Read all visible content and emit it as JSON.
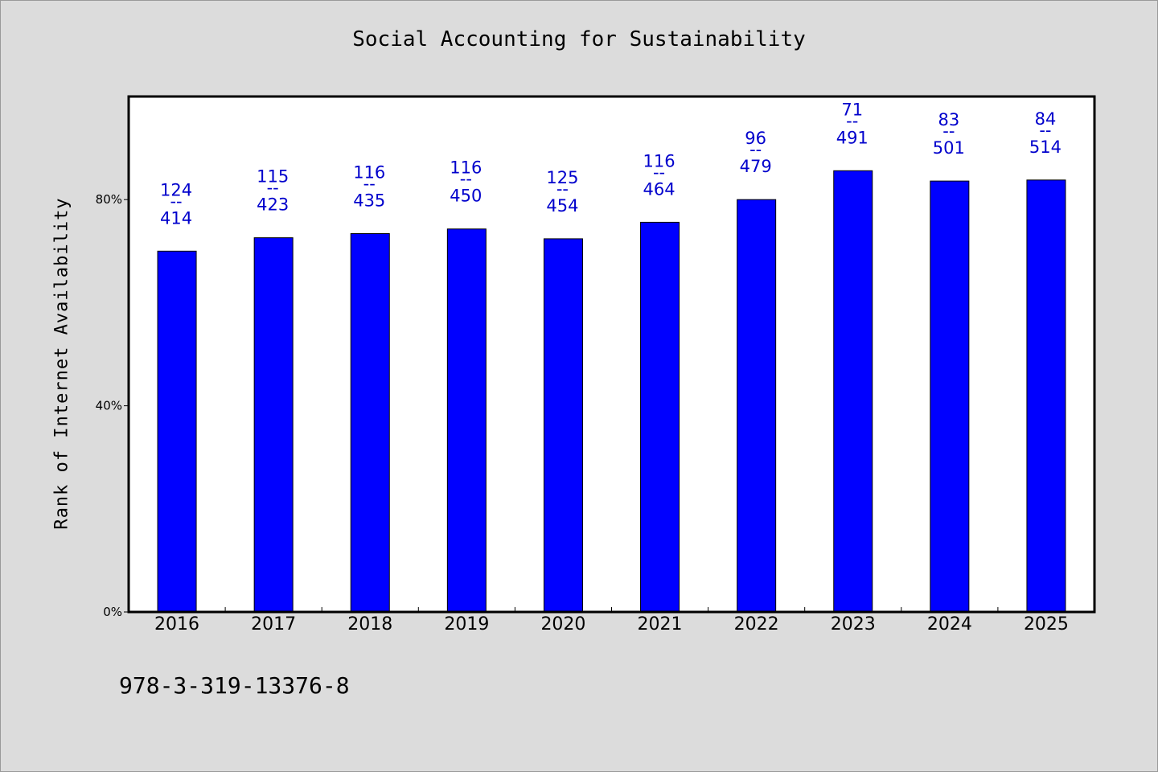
{
  "chart_data": {
    "type": "bar",
    "title": "Social Accounting for Sustainability",
    "xlabel": "",
    "ylabel": "Rank of Internet Availability",
    "ylim": [
      0,
      100
    ],
    "yticks": [
      0,
      40,
      80
    ],
    "ytick_labels": [
      "0%",
      "40%",
      "80%"
    ],
    "grid": false,
    "categories": [
      "2016",
      "2017",
      "2018",
      "2019",
      "2020",
      "2021",
      "2022",
      "2023",
      "2024",
      "2025"
    ],
    "values": [
      70.0,
      72.6,
      73.4,
      74.3,
      72.4,
      75.6,
      80.0,
      85.6,
      83.6,
      83.8
    ],
    "label_top": [
      "124",
      "115",
      "116",
      "116",
      "125",
      "116",
      "96",
      "71",
      "83",
      "84"
    ],
    "label_bottom": [
      "414",
      "423",
      "435",
      "450",
      "454",
      "464",
      "479",
      "491",
      "501",
      "514"
    ],
    "label_separator": "--",
    "bar_color": "#0000ff",
    "label_color": "#0000cc"
  },
  "footer": "978-3-319-13376-8"
}
